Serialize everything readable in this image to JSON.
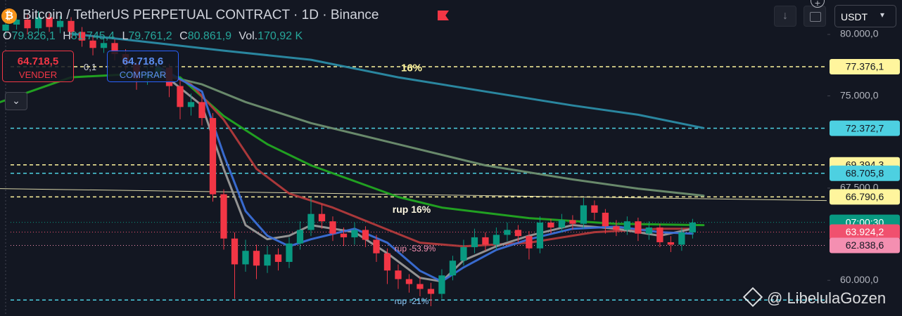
{
  "header": {
    "title": "Bitcoin / TetherUS PERPETUAL CONTRACT · 1D · Binance",
    "ohlc": [
      {
        "key": "O",
        "value": "79.826,1"
      },
      {
        "key": "H",
        "value": "81.745,4"
      },
      {
        "key": "L",
        "value": "79.761,2"
      },
      {
        "key": "C",
        "value": "80.861,9"
      },
      {
        "key": "Vol.",
        "value": "170,92 K"
      }
    ]
  },
  "trade": {
    "sell_price": "64.718,5",
    "sell_label": "VENDER",
    "qty": "0,1",
    "buy_price": "64.718,6",
    "buy_label": "COMPRAR"
  },
  "currency": "USDT",
  "watermark": "@ LibelulaGozen",
  "annotations": [
    "16%",
    "rup 16%",
    "rup -53.9%",
    "rup -21%"
  ],
  "chart_data": {
    "type": "candlestick",
    "xlim": [
      -0.52,
      75.3
    ],
    "ylim": [
      57100,
      82800
    ],
    "yticks": [
      {
        "value": 80000,
        "label": "80.000,0"
      },
      {
        "value": 75000,
        "label": "75.000,0"
      },
      {
        "value": 67500,
        "label": "67.500,0"
      },
      {
        "value": 60000,
        "label": "60.000,0"
      }
    ],
    "up_color": "#089981",
    "down_color": "#f23645",
    "open": [
      80300,
      80800,
      81200,
      80500,
      81400,
      80600,
      81100,
      80200,
      79500,
      78900,
      79300,
      78400,
      77600,
      76400,
      76900,
      77300,
      75800,
      74100,
      74500,
      73200,
      67000,
      63400,
      61300,
      62400,
      61200,
      62100,
      61500,
      63000,
      64100,
      65400,
      64800,
      63800,
      63500,
      64100,
      63300,
      62200,
      60800,
      60100,
      59700,
      59300,
      58900,
      60400,
      61600,
      62700,
      63500,
      62900,
      63700,
      64100,
      63600,
      62600,
      64700,
      64300,
      64900,
      64600,
      66100,
      65500,
      64400,
      64100,
      64800,
      63800,
      64300,
      63100,
      62900,
      63900
    ],
    "high": [
      81300,
      81700,
      81600,
      81900,
      81700,
      81500,
      81400,
      80600,
      79900,
      79800,
      79600,
      78800,
      77900,
      77500,
      77800,
      77600,
      76200,
      75200,
      74900,
      73600,
      67400,
      63900,
      63300,
      62900,
      62800,
      62600,
      63500,
      64800,
      66700,
      66200,
      65200,
      64300,
      64700,
      64400,
      63700,
      62600,
      61300,
      60500,
      60300,
      59800,
      60900,
      62000,
      63300,
      64200,
      63900,
      64300,
      64700,
      64500,
      64000,
      65200,
      65000,
      65400,
      65300,
      66700,
      66500,
      65800,
      64900,
      65200,
      65100,
      64800,
      64600,
      63600,
      64300,
      65000
    ],
    "low": [
      79900,
      80400,
      80000,
      80100,
      80200,
      80100,
      79700,
      79000,
      78300,
      78500,
      77900,
      77100,
      75500,
      75900,
      76400,
      74900,
      73100,
      73400,
      72600,
      66400,
      62500,
      58500,
      60700,
      60100,
      60600,
      60800,
      61000,
      62500,
      63600,
      64200,
      63200,
      62800,
      62900,
      62700,
      61500,
      59700,
      59300,
      59000,
      58700,
      57900,
      58500,
      60000,
      61200,
      62200,
      62400,
      62500,
      63200,
      63100,
      61700,
      62200,
      63800,
      63900,
      64100,
      64200,
      64900,
      63800,
      63600,
      63700,
      63200,
      63300,
      62700,
      62300,
      62400,
      63400
    ],
    "close": [
      80800,
      81200,
      80500,
      81400,
      80600,
      81100,
      80200,
      79500,
      78900,
      79300,
      78400,
      77600,
      76400,
      76900,
      77300,
      75800,
      74100,
      74500,
      73200,
      67000,
      63400,
      61300,
      62400,
      61200,
      62100,
      61500,
      63000,
      64100,
      65400,
      64800,
      63800,
      63500,
      64100,
      63300,
      62200,
      60800,
      60100,
      59700,
      59300,
      58900,
      60400,
      61600,
      62700,
      63500,
      62900,
      63700,
      64100,
      63600,
      62600,
      64700,
      64300,
      64900,
      64600,
      66100,
      65500,
      64400,
      64100,
      64800,
      63800,
      64300,
      63100,
      62900,
      63900,
      64700
    ],
    "series": [
      {
        "color": "#2b8ca6",
        "x": [
          6,
          12,
          20,
          28,
          36,
          44,
          52,
          58,
          64
        ],
        "values": [
          80060,
          79480,
          78680,
          77940,
          76510,
          75360,
          74220,
          73470,
          72390
        ]
      },
      {
        "color": "#6e8f70",
        "x": [
          14,
          18,
          22,
          28,
          36,
          44,
          52,
          58,
          64
        ],
        "values": [
          76790,
          75940,
          74500,
          72790,
          71070,
          69350,
          68210,
          67460,
          66890
        ]
      },
      {
        "color": "#22a822",
        "x": [
          -0.5,
          6,
          12,
          16,
          20,
          24,
          28,
          36,
          40,
          48,
          56,
          64
        ],
        "values": [
          74500,
          76510,
          76790,
          76510,
          73360,
          71070,
          69350,
          66780,
          65920,
          65060,
          64600,
          64490
        ]
      },
      {
        "color": "#b23a3c",
        "x": [
          14,
          17,
          20,
          23,
          26,
          30,
          34,
          38,
          42,
          48,
          54,
          60,
          63
        ],
        "values": [
          77080,
          75940,
          73070,
          69070,
          67060,
          65920,
          64490,
          63060,
          62770,
          63060,
          63920,
          64200,
          64200
        ]
      },
      {
        "color": "#9a9a9a",
        "x": [
          14,
          18,
          20,
          22,
          24,
          26,
          28,
          32,
          35,
          38,
          40,
          42,
          45,
          48,
          52,
          56,
          60,
          63
        ],
        "values": [
          77080,
          74220,
          69070,
          64490,
          63340,
          63630,
          64490,
          63920,
          62200,
          60200,
          59910,
          61630,
          62770,
          63630,
          64490,
          64200,
          63630,
          64200
        ]
      },
      {
        "color": "#3a6fd8",
        "x": [
          14,
          18,
          20,
          22,
          24,
          26,
          28,
          32,
          35,
          38,
          40,
          42,
          45,
          48,
          52,
          56,
          60,
          63
        ],
        "values": [
          77370,
          75360,
          70210,
          65630,
          63630,
          62770,
          63340,
          64200,
          63060,
          60770,
          59910,
          61050,
          62480,
          63340,
          64200,
          64370,
          63920,
          63800
        ]
      }
    ],
    "trendline": {
      "x": [
        -0.52,
        75.3
      ],
      "values": [
        67460,
        66490
      ]
    },
    "levels": [
      {
        "value": 77376.1,
        "label": "77.376,1",
        "color": "#fff59d",
        "style": "dashed"
      },
      {
        "value": 72372.7,
        "label": "72.372,7",
        "color": "#4dd0e1",
        "style": "dashed"
      },
      {
        "value": 69394.3,
        "label": "69.394,3",
        "color": "#fff59d",
        "style": "dashed"
      },
      {
        "value": 68705.8,
        "label": "68.705,8",
        "color": "#4dd0e1",
        "style": "dashed"
      },
      {
        "value": 66790.6,
        "label": "66.790,6",
        "color": "#fff59d",
        "style": "dashed"
      },
      {
        "value": 64718.6,
        "badge": "07:00:30",
        "color": "#089981",
        "style": "dotted"
      },
      {
        "value": 63924.2,
        "label": "63.924,2",
        "color": "#f0506e",
        "style": "dotted"
      },
      {
        "value": 62838.6,
        "label": "62.838,6",
        "color": "#f48fb1",
        "style": "dotted"
      },
      {
        "value": 58400,
        "color": "#4dd0e1",
        "style": "dashed"
      }
    ]
  }
}
